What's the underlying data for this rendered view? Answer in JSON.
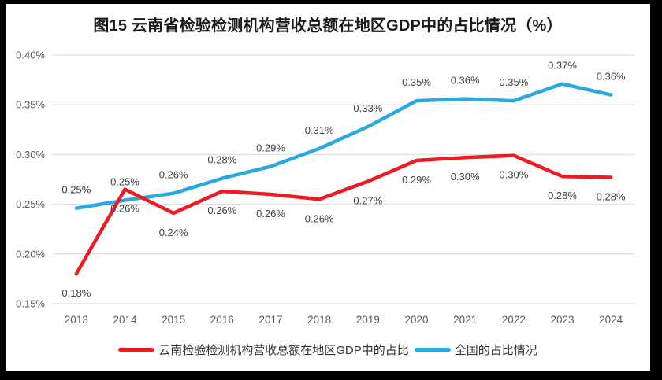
{
  "window": {
    "frame_color": "#000000",
    "canvas_color": "#ffffff"
  },
  "chart_title": "图15 云南省检验检测机构营收总额在地区GDP中的占比情况（%）",
  "chart_data": {
    "type": "line",
    "title": "图15 云南省检验检测机构营收总额在地区GDP中的占比情况（%）",
    "categories": [
      "2013",
      "2014",
      "2015",
      "2016",
      "2017",
      "2018",
      "2019",
      "2020",
      "2021",
      "2022",
      "2023",
      "2024"
    ],
    "y_axis": {
      "min": 0.15,
      "max": 0.4,
      "step": 0.05,
      "tick_labels": [
        "0.15%",
        "0.20%",
        "0.25%",
        "0.30%",
        "0.35%",
        "0.40%"
      ],
      "unit": "%"
    },
    "grid": true,
    "legend_position": "bottom",
    "series": [
      {
        "name": "云南检验检测机构营收总额在地区GDP中的占比",
        "key": "yunnan",
        "color": "#ED1C24",
        "values": [
          0.18,
          0.26,
          0.24,
          0.26,
          0.26,
          0.26,
          0.27,
          0.29,
          0.3,
          0.3,
          0.28,
          0.28
        ],
        "data_labels": [
          "0.18%",
          "0.26%",
          "0.24%",
          "0.26%",
          "0.26%",
          "0.26%",
          "0.27%",
          "0.29%",
          "0.30%",
          "0.30%",
          "0.28%",
          "0.28%"
        ],
        "label_position": "below",
        "plot_values": [
          0.18,
          0.265,
          0.241,
          0.263,
          0.26,
          0.255,
          0.273,
          0.294,
          0.297,
          0.299,
          0.278,
          0.277
        ]
      },
      {
        "name": "全国的占比情况",
        "key": "national",
        "color": "#29A9E0",
        "values": [
          0.25,
          0.25,
          0.26,
          0.28,
          0.29,
          0.31,
          0.33,
          0.35,
          0.36,
          0.35,
          0.37,
          0.36
        ],
        "data_labels": [
          "0.25%",
          "0.25%",
          "0.26%",
          "0.28%",
          "0.29%",
          "0.31%",
          "0.33%",
          "0.35%",
          "0.36%",
          "0.35%",
          "0.37%",
          "0.36%"
        ],
        "label_position": "above",
        "plot_values": [
          0.246,
          0.254,
          0.261,
          0.276,
          0.288,
          0.306,
          0.328,
          0.354,
          0.356,
          0.354,
          0.371,
          0.36
        ]
      }
    ]
  },
  "legend": {
    "items": [
      {
        "label": "云南检验检测机构营收总额在地区GDP中的占比",
        "color": "#ED1C24"
      },
      {
        "label": "全国的占比情况",
        "color": "#29A9E0"
      }
    ]
  },
  "colors": {
    "grid": "#D9D9D9",
    "axis_text": "#595959",
    "data_label_text": "#404040",
    "title_text": "#1a1a1a"
  }
}
